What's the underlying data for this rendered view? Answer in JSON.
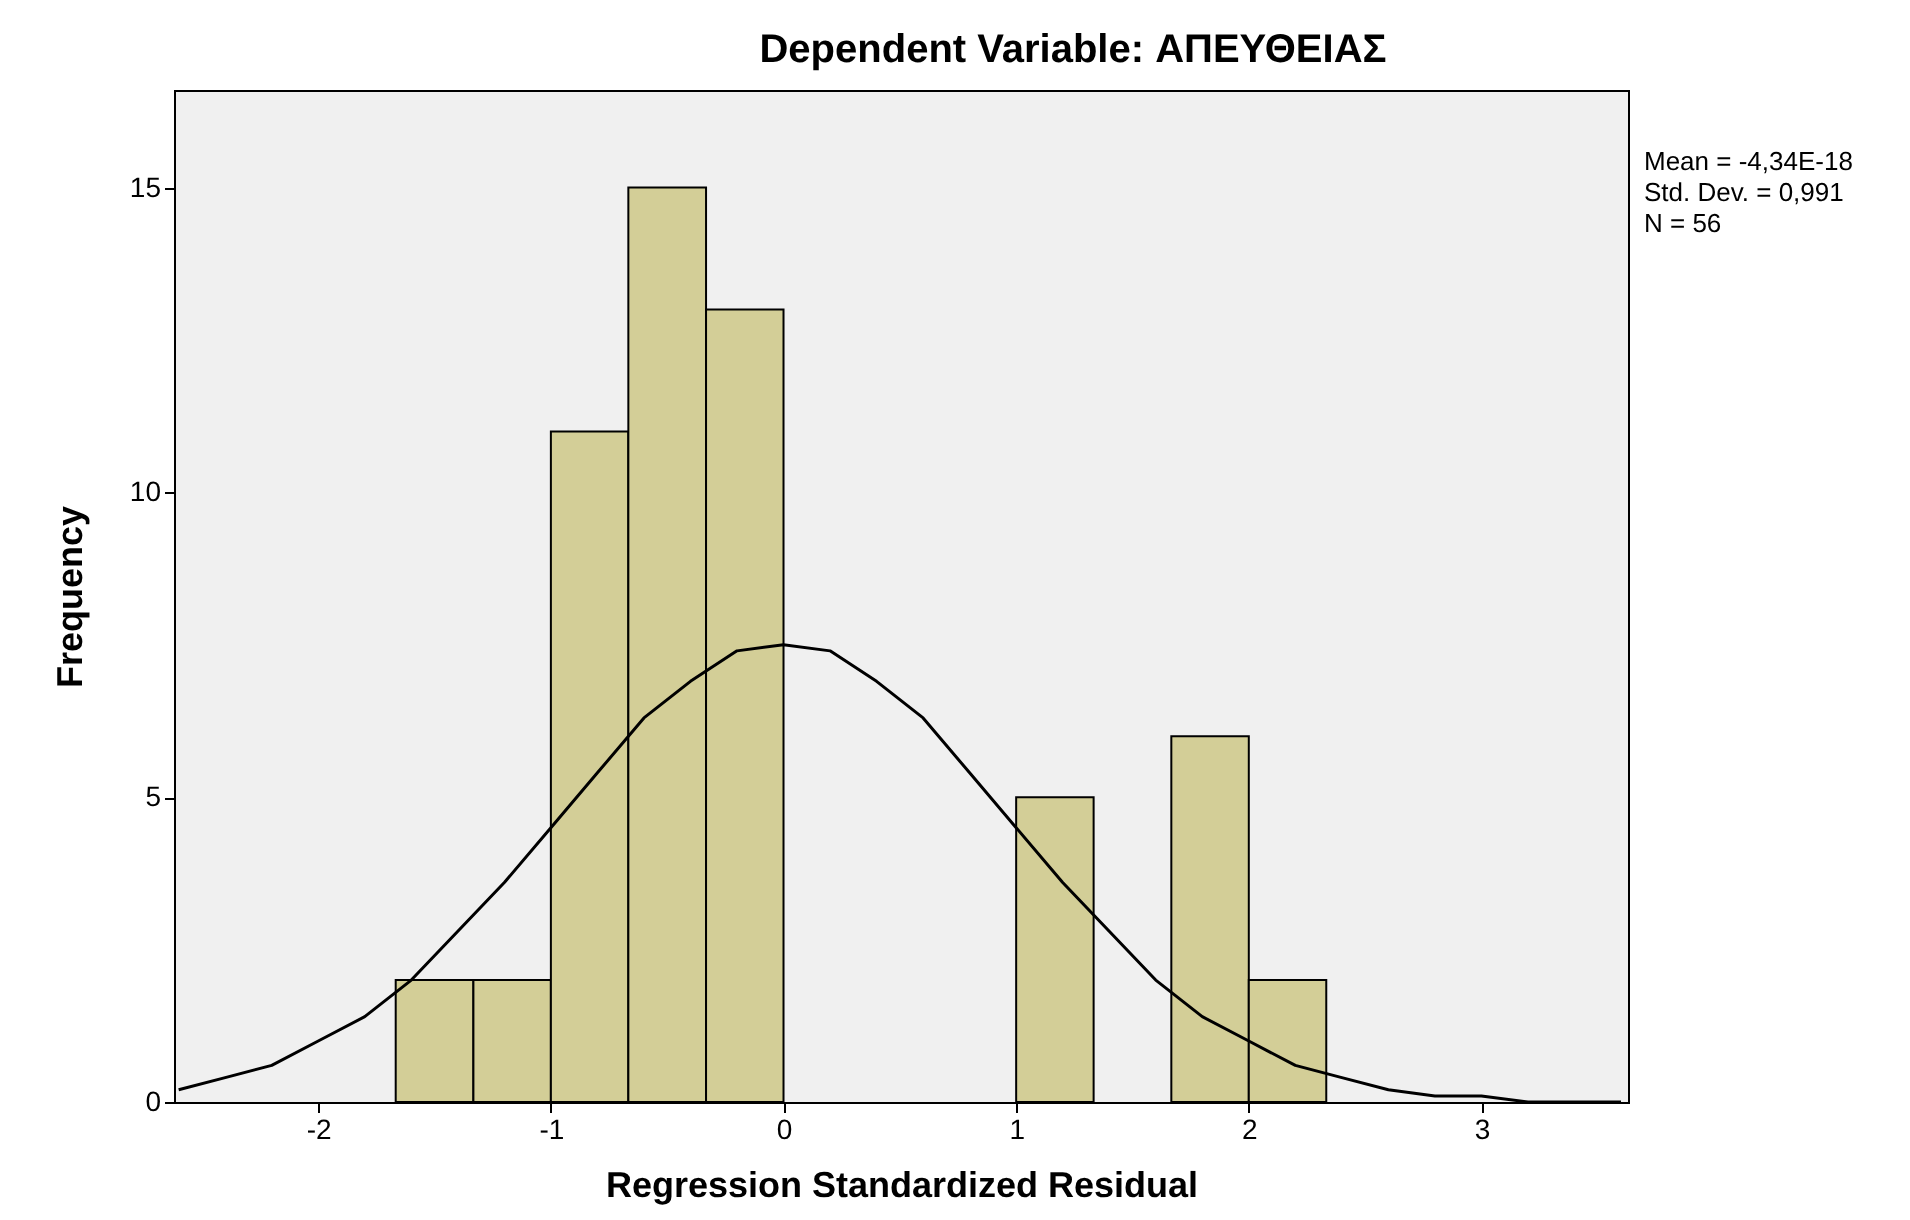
{
  "chart_data": {
    "type": "histogram",
    "title": "Dependent Variable: ΑΠΕΥΘΕΙΑΣ",
    "xlabel": "Regression Standardized Residual",
    "ylabel": "Frequency",
    "bins": [
      -1.667,
      -1.333,
      -1,
      -0.667,
      -0.333,
      0,
      0.333,
      0.667,
      1,
      1.333,
      1.667,
      2,
      2.333
    ],
    "values": [
      2,
      2,
      11,
      15,
      13,
      0,
      0,
      0,
      5,
      0,
      6,
      2
    ],
    "color": "#d3ce97",
    "series": [
      {
        "type": "line",
        "color": "#000000",
        "x": [
          -2.6,
          -2.4,
          -2.2,
          -2.0,
          -1.8,
          -1.6,
          -1.4,
          -1.2,
          -1.0,
          -0.8,
          -0.6,
          -0.4,
          -0.2,
          0,
          0.2,
          0.4,
          0.6,
          0.8,
          1.0,
          1.2,
          1.4,
          1.6,
          1.8,
          2.0,
          2.2,
          2.4,
          2.6,
          2.8,
          3.0,
          3.2,
          3.4,
          3.6
        ],
        "values": [
          0.2,
          0.4,
          0.6,
          1.0,
          1.4,
          2.0,
          2.8,
          3.6,
          4.5,
          5.4,
          6.3,
          6.9,
          7.4,
          7.5,
          7.4,
          6.9,
          6.3,
          5.4,
          4.5,
          3.6,
          2.8,
          2.0,
          1.4,
          1.0,
          0.6,
          0.4,
          0.2,
          0.1,
          0.1,
          0.0,
          0.0,
          0.0
        ]
      }
    ],
    "annotations": [
      "Mean = -4,34E-18",
      "Std. Dev. = 0,991",
      "N = 56"
    ],
    "xlim": [
      -2.62,
      3.63
    ],
    "ylim": [
      0,
      16.6
    ],
    "xticks": [
      -2,
      -1,
      0,
      1,
      2,
      3
    ],
    "yticks": [
      0,
      5,
      10,
      15
    ],
    "grid": false
  }
}
